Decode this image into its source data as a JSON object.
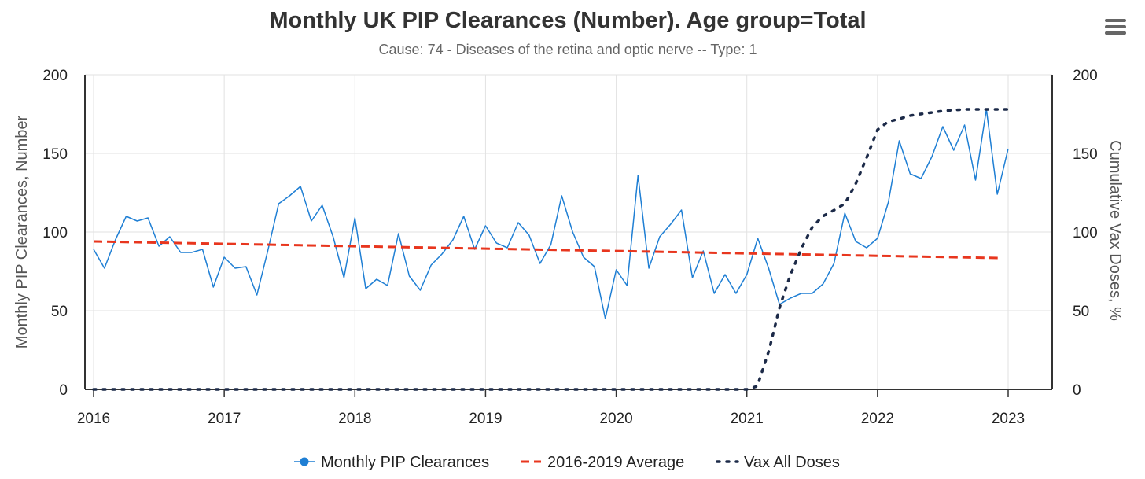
{
  "chart_data": {
    "type": "line",
    "title": "Monthly UK PIP Clearances (Number). Age group=Total",
    "subtitle": "Cause: 74 - Diseases of the retina and optic nerve -- Type: 1",
    "xlabel": "",
    "ylabel_left": "Monthly PIP Clearances, Number",
    "ylabel_right": "Cumulative Vax Doses, %",
    "xlim": [
      2016,
      2023.35
    ],
    "ylim_left": [
      0,
      200
    ],
    "ylim_right": [
      0,
      200
    ],
    "x_ticks": [
      2016,
      2017,
      2018,
      2019,
      2020,
      2021,
      2022,
      2023
    ],
    "x_tick_labels": [
      "2016",
      "2017",
      "2018",
      "2019",
      "2020",
      "2021",
      "2022",
      "2023"
    ],
    "y_ticks_left": [
      0,
      50,
      100,
      150,
      200
    ],
    "y_tick_labels_left": [
      "0",
      "50",
      "100",
      "150",
      "200"
    ],
    "y_ticks_right": [
      0,
      50,
      100,
      150,
      200
    ],
    "y_tick_labels_right": [
      "0",
      "50",
      "100",
      "150",
      "200"
    ],
    "grid": true,
    "legend_position": "bottom-center",
    "series": [
      {
        "name": "Monthly PIP Clearances",
        "style": "solid",
        "color": "#1f7fd4",
        "x_start": 2016,
        "x_step": 0.083333,
        "values": [
          89,
          77,
          95,
          110,
          107,
          109,
          91,
          97,
          87,
          87,
          89,
          65,
          84,
          77,
          78,
          60,
          88,
          118,
          123,
          129,
          107,
          117,
          97,
          71,
          109,
          64,
          70,
          66,
          99,
          72,
          63,
          79,
          86,
          95,
          110,
          89,
          104,
          93,
          90,
          106,
          98,
          80,
          92,
          123,
          100,
          84,
          78,
          45,
          76,
          66,
          136,
          77,
          97,
          105,
          114,
          71,
          88,
          61,
          73,
          61,
          73,
          96,
          77,
          54,
          58,
          61,
          61,
          67,
          80,
          112,
          94,
          90,
          96,
          119,
          158,
          137,
          134,
          148,
          167,
          152,
          168,
          133,
          178,
          124,
          153
        ]
      },
      {
        "name": "2016-2019 Average",
        "style": "dashed",
        "color": "#e8361e",
        "x": [
          2016,
          2022.92
        ],
        "values": [
          94,
          83.5
        ]
      },
      {
        "name": "Vax All Doses",
        "style": "dotted",
        "color": "#1c2a48",
        "axis": "right",
        "x": [
          2016,
          2021.0,
          2021.08,
          2021.17,
          2021.25,
          2021.33,
          2021.42,
          2021.5,
          2021.58,
          2021.67,
          2021.75,
          2021.83,
          2021.92,
          2022.0,
          2022.08,
          2022.17,
          2022.25,
          2022.33,
          2022.42,
          2022.5,
          2022.58,
          2022.67,
          2022.75,
          2022.83,
          2022.92,
          2023.0
        ],
        "values": [
          0,
          0,
          2,
          25,
          52,
          72,
          90,
          103,
          110,
          114,
          118,
          130,
          148,
          165,
          170,
          172,
          174,
          175,
          176,
          177,
          177.5,
          178,
          178,
          178,
          178,
          178
        ]
      }
    ]
  },
  "ui": {
    "menu_icon": "hamburger-menu-icon"
  }
}
